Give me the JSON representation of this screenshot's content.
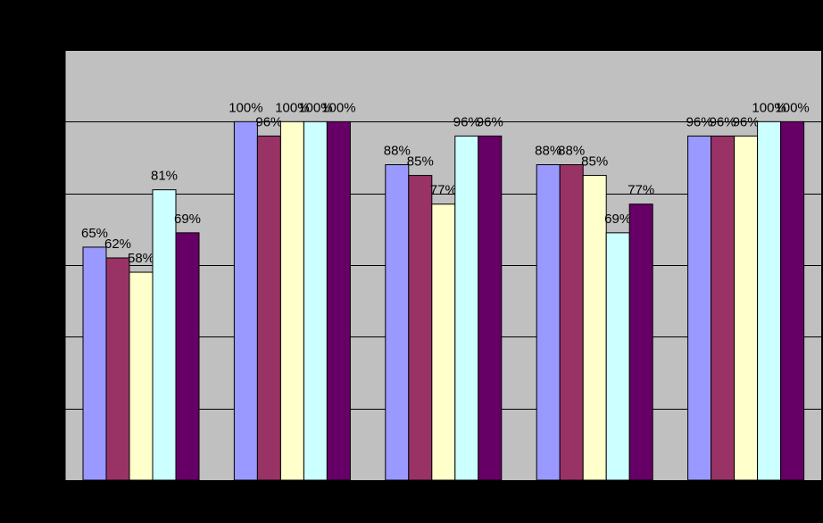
{
  "chart_data": {
    "type": "bar",
    "title": "",
    "xlabel": "",
    "ylabel": "",
    "ylim": [
      0,
      1.2
    ],
    "grid": true,
    "legend": "none",
    "categories": [
      "",
      "",
      "",
      "",
      ""
    ],
    "series": [
      {
        "color": "#9999FF",
        "values": [
          0.65,
          1.0,
          0.88,
          0.88,
          0.96
        ],
        "labels": [
          "65%",
          "100%",
          "88%",
          "88%",
          "96%"
        ]
      },
      {
        "color": "#993366",
        "values": [
          0.62,
          0.96,
          0.85,
          0.88,
          0.96
        ],
        "labels": [
          "62%",
          "96%",
          "85%",
          "88%",
          "96%"
        ]
      },
      {
        "color": "#FFFFCC",
        "values": [
          0.58,
          1.0,
          0.77,
          0.85,
          0.96
        ],
        "labels": [
          "58%",
          "100%",
          "77%",
          "85%",
          "96%"
        ]
      },
      {
        "color": "#CCFFFF",
        "values": [
          0.81,
          1.0,
          0.96,
          0.69,
          1.0
        ],
        "labels": [
          "81%",
          "100%",
          "96%",
          "69%",
          "100%"
        ]
      },
      {
        "color": "#660066",
        "values": [
          0.69,
          1.0,
          0.96,
          0.77,
          1.0
        ],
        "labels": [
          "69%",
          "100%",
          "96%",
          "77%",
          "100%"
        ]
      }
    ],
    "plot_background": "#C0C0C0",
    "page_background": "#000000"
  }
}
